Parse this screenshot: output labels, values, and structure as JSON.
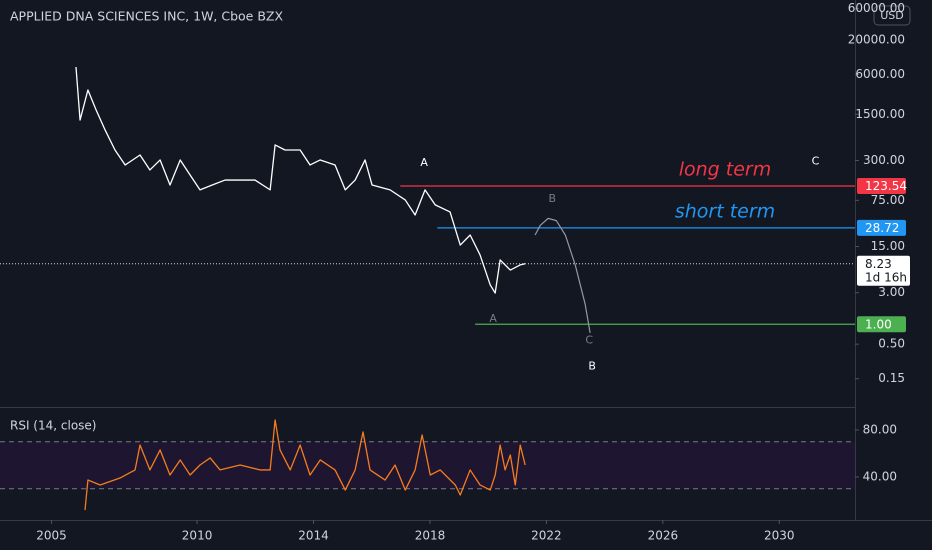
{
  "chart_data": [
    {
      "type": "line",
      "title": "APPLIED DNA SCIENCES INC, 1W, Cboe BZX",
      "currency": "USD",
      "log_scale": true,
      "x": [
        2005.84,
        2005.98,
        2006.25,
        2006.53,
        2006.84,
        2007.18,
        2007.53,
        2008.04,
        2008.38,
        2008.73,
        2009.07,
        2009.42,
        2009.76,
        2010.1,
        2010.52,
        2010.96,
        2011.48,
        2011.99,
        2012.51,
        2012.68,
        2013.02,
        2013.54,
        2013.88,
        2014.23,
        2014.74,
        2015.09,
        2015.43,
        2015.77,
        2016.01,
        2016.63,
        2017.15,
        2017.49,
        2017.83,
        2018.18,
        2018.69,
        2019.04,
        2019.38,
        2019.72,
        2020.07,
        2020.24,
        2020.41,
        2020.76,
        2021.1,
        2021.27
      ],
      "series": [
        {
          "color": "#ffffff",
          "values": [
            7800,
            1230,
            3500,
            1750,
            870,
            433,
            257,
            364,
            216,
            306,
            128,
            306,
            181,
            108,
            128,
            152,
            152,
            152,
            108,
            516,
            433,
            433,
            257,
            306,
            257,
            108,
            152,
            306,
            128,
            108,
            76,
            45,
            108,
            64,
            50,
            15.8,
            22.4,
            11.2,
            3.93,
            2.97,
            9.4,
            6.6,
            7.9,
            8.23
          ]
        }
      ],
      "xlim": [
        2003.23,
        2032.6
      ],
      "xticks": [
        2005,
        2010,
        2014,
        2018,
        2022,
        2026,
        2030
      ],
      "ylim": [
        0.056,
        80500
      ],
      "yticks": [
        {
          "value": 60000,
          "label": "60000.00"
        },
        {
          "value": 20000,
          "label": "20000.00"
        },
        {
          "value": 6000,
          "label": "6000.00"
        },
        {
          "value": 1500,
          "label": "1500.00"
        },
        {
          "value": 300,
          "label": "300.00"
        },
        {
          "value": 75,
          "label": "75.00"
        },
        {
          "value": 15,
          "label": "15.00"
        },
        {
          "value": 3,
          "label": "3.00"
        },
        {
          "value": 0.5,
          "label": "0.50"
        },
        {
          "value": 0.15,
          "label": "0.15"
        }
      ],
      "hlines": [
        {
          "text": "long term",
          "value": 123.54,
          "color": "#f23645",
          "x_start": 2016.98
        },
        {
          "text": "short term",
          "value": 28.72,
          "color": "#2196f3",
          "x_start": 2018.25
        },
        {
          "value": 1,
          "value_label": "1.00",
          "color": "#4caf50",
          "x_start": 2019.55
        }
      ],
      "last_price": {
        "value": 8.23,
        "countdown": "1d 16h"
      },
      "annotations": [
        {
          "text": "A",
          "x": 2017.8,
          "y": 275,
          "color": "#ffffff"
        },
        {
          "text": "C",
          "x": 2031.24,
          "y": 290,
          "color": "#ffffff"
        },
        {
          "text": "B",
          "x": 2022.2,
          "y": 78.7,
          "color": "#787b86"
        },
        {
          "text": "A",
          "x": 2020.17,
          "y": 1.21,
          "color": "#787b86"
        },
        {
          "text": "C",
          "x": 2023.47,
          "y": 0.57,
          "color": "#787b86"
        },
        {
          "text": "B",
          "x": 2023.57,
          "y": 0.23,
          "color": "#ffffff"
        }
      ],
      "projection": {
        "color": "#9598a1",
        "x": [
          2021.61,
          2021.79,
          2022.06,
          2022.34,
          2022.65,
          2022.99,
          2023.33,
          2023.5
        ],
        "values": [
          22.4,
          31.4,
          40,
          37,
          22.4,
          7.9,
          2.02,
          0.74
        ]
      }
    },
    {
      "type": "line",
      "title": "RSI (14, close)",
      "x": [
        2006.15,
        2006.25,
        2006.67,
        2007.35,
        2007.87,
        2008.04,
        2008.38,
        2008.73,
        2009.07,
        2009.42,
        2009.76,
        2010.1,
        2010.45,
        2010.79,
        2011.48,
        2012.16,
        2012.51,
        2012.68,
        2012.85,
        2013.2,
        2013.54,
        2013.88,
        2014.23,
        2014.74,
        2015.09,
        2015.43,
        2015.7,
        2015.94,
        2016.46,
        2016.8,
        2017.15,
        2017.49,
        2017.73,
        2018.01,
        2018.35,
        2018.87,
        2019.04,
        2019.38,
        2019.72,
        2020.07,
        2020.24,
        2020.41,
        2020.58,
        2020.76,
        2020.93,
        2021.1,
        2021.27
      ],
      "series": [
        {
          "color": "#f57c1f",
          "values": [
            11.9,
            37.4,
            33.2,
            39.1,
            46.0,
            67.2,
            46.0,
            63.0,
            41.7,
            54.5,
            41.7,
            50.2,
            56.2,
            46.0,
            50.2,
            46.0,
            46.0,
            88.5,
            63.0,
            46.0,
            67.2,
            41.7,
            54.5,
            46.0,
            28.9,
            46.0,
            78.3,
            46.0,
            37.4,
            50.2,
            28.9,
            46.0,
            75.7,
            41.7,
            46.0,
            33.2,
            24.7,
            46.0,
            33.2,
            28.9,
            41.7,
            67.2,
            46.0,
            58.7,
            33.2,
            67.2,
            50.2
          ]
        }
      ],
      "xlim": [
        2003.23,
        2032.6
      ],
      "ylim": [
        3.4,
        98.7
      ],
      "yticks": [
        {
          "value": 80,
          "label": "80.00"
        },
        {
          "value": 40,
          "label": "40.00"
        }
      ],
      "bands": [
        30,
        70
      ],
      "band_color": "#1e1530"
    }
  ]
}
